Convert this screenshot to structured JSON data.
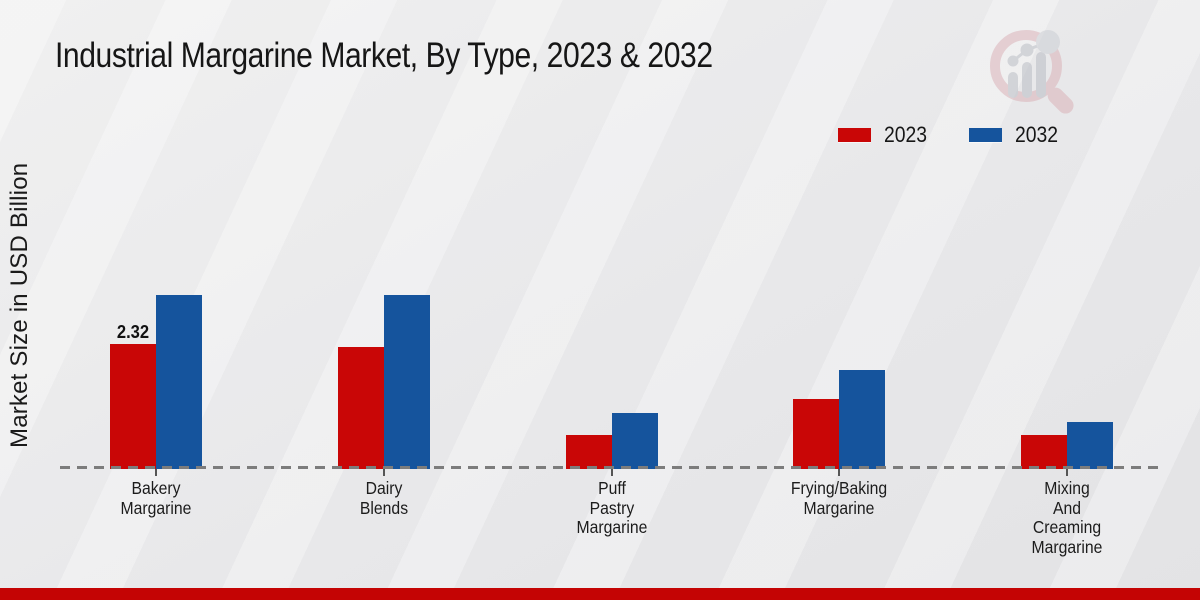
{
  "header": {
    "title": "Industrial Margarine Market, By Type, 2023 & 2032"
  },
  "y_axis": {
    "label": "Market Size in USD Billion"
  },
  "legend": {
    "items": [
      {
        "label": "2023",
        "color": "#c90606"
      },
      {
        "label": "2032",
        "color": "#15549d"
      }
    ]
  },
  "chart_data": {
    "type": "bar",
    "title": "Industrial Margarine Market, By Type, 2023 & 2032",
    "xlabel": "",
    "ylabel": "Market Size in USD Billion",
    "categories": [
      "Bakery Margarine",
      "Dairy Blends",
      "Puff Pastry Margarine",
      "Frying/Baking Margarine",
      "Mixing And Creaming Margarine"
    ],
    "category_lines": [
      [
        "Bakery",
        "Margarine"
      ],
      [
        "Dairy",
        "Blends"
      ],
      [
        "Puff",
        "Pastry",
        "Margarine"
      ],
      [
        "Frying/Baking",
        "Margarine"
      ],
      [
        "Mixing",
        "And",
        "Creaming",
        "Margarine"
      ]
    ],
    "series": [
      {
        "name": "2023",
        "color": "#c90606",
        "values": [
          2.32,
          2.26,
          0.64,
          1.29,
          0.64
        ]
      },
      {
        "name": "2032",
        "color": "#15549d",
        "values": [
          3.22,
          3.22,
          1.03,
          1.83,
          0.88
        ]
      }
    ],
    "annotations": [
      {
        "series_index": 0,
        "category_index": 0,
        "text": "2.32"
      }
    ],
    "ylim": [
      0,
      3.5
    ],
    "grid": false,
    "legend_position": "top-right",
    "axis_style": "dashed-baseline"
  },
  "footer": {
    "color": "#c40404"
  },
  "logo": {
    "name": "market-research-future-watermark"
  }
}
